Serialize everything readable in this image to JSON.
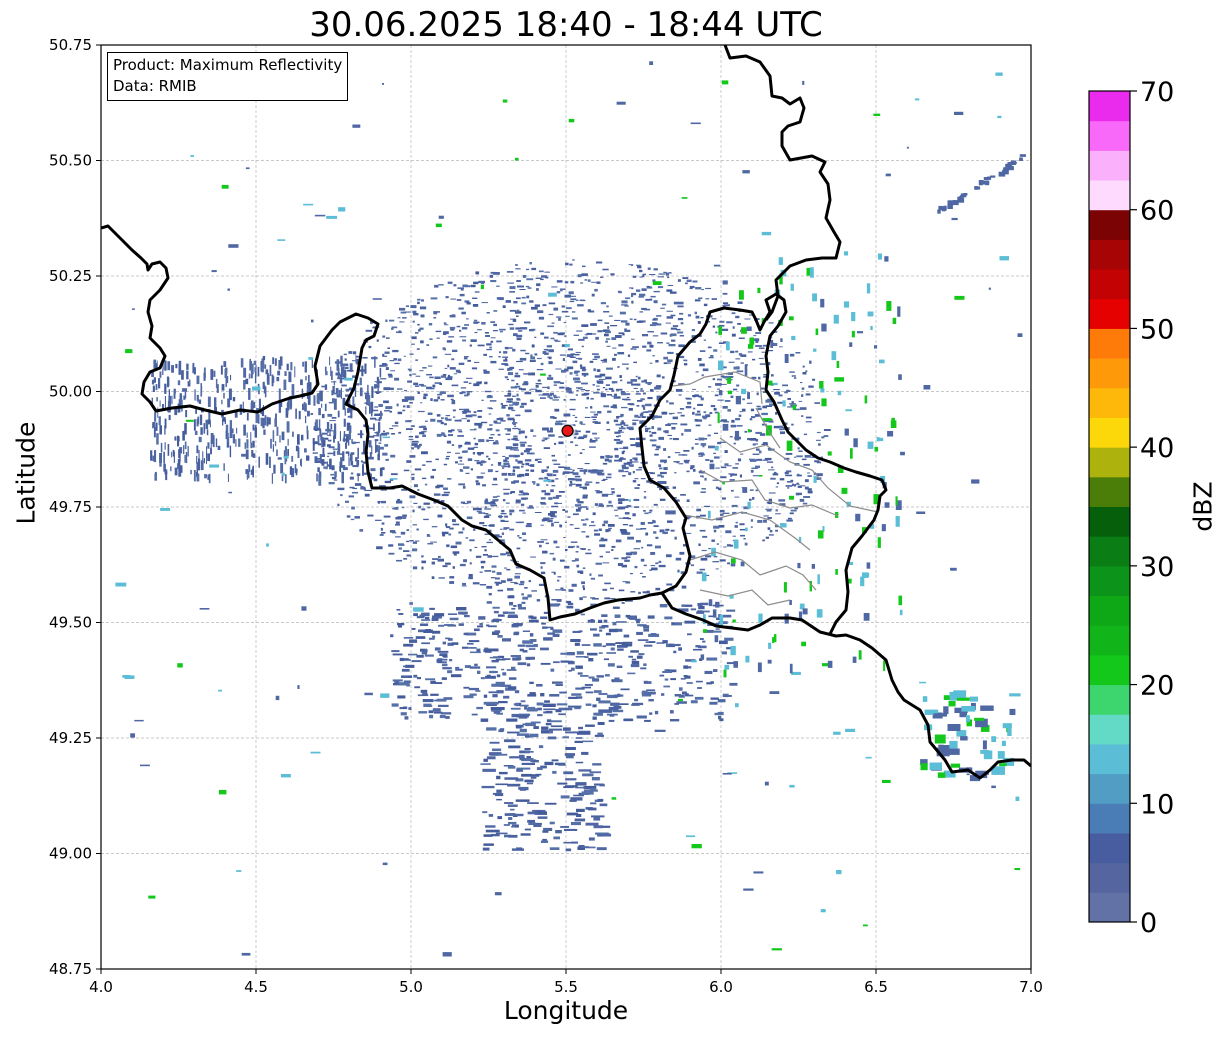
{
  "title": "30.06.2025 18:40 - 18:44 UTC",
  "info_box": {
    "line1": "Product: Maximum Reflectivity",
    "line2": "Data: RMIB"
  },
  "axes": {
    "xlabel": "Longitude",
    "ylabel": "Latitude",
    "xlim": [
      4.0,
      7.0
    ],
    "ylim": [
      48.75,
      50.75
    ],
    "xticks": [
      "4.0",
      "4.5",
      "5.0",
      "5.5",
      "6.0",
      "6.5",
      "7.0"
    ],
    "yticks": [
      "50.75",
      "50.50",
      "50.25",
      "50.00",
      "49.75",
      "49.50",
      "49.25",
      "49.00",
      "48.75"
    ],
    "grid": true
  },
  "radar_site": {
    "lon": 5.505,
    "lat": 49.915,
    "color": "#e8191b"
  },
  "colorbar": {
    "label": "dBZ",
    "ticks": [
      "0",
      "10",
      "20",
      "30",
      "40",
      "50",
      "60",
      "70"
    ],
    "range": [
      0,
      70
    ],
    "step": 2.5,
    "colors": [
      "#6271a6",
      "#55659f",
      "#475d9f",
      "#4a7db5",
      "#529dc4",
      "#5bbdd6",
      "#63dac5",
      "#3dd56d",
      "#14c81b",
      "#11b51a",
      "#0ea816",
      "#0c941a",
      "#0a7e15",
      "#065f0b",
      "#4b7d09",
      "#adb20c",
      "#fcd80a",
      "#fdb80a",
      "#fe990a",
      "#fe7a09",
      "#e60101",
      "#c20203",
      "#a60405",
      "#7b0303",
      "#fddafe",
      "#fbb0fc",
      "#f868f9",
      "#ea2aed"
    ]
  },
  "colors": {
    "echo_weak": "#4f67a3",
    "echo_moderate": "#5bbdd6",
    "echo_strong": "#14c81b",
    "border": "#000000",
    "subregion": "#8c8c8c"
  }
}
